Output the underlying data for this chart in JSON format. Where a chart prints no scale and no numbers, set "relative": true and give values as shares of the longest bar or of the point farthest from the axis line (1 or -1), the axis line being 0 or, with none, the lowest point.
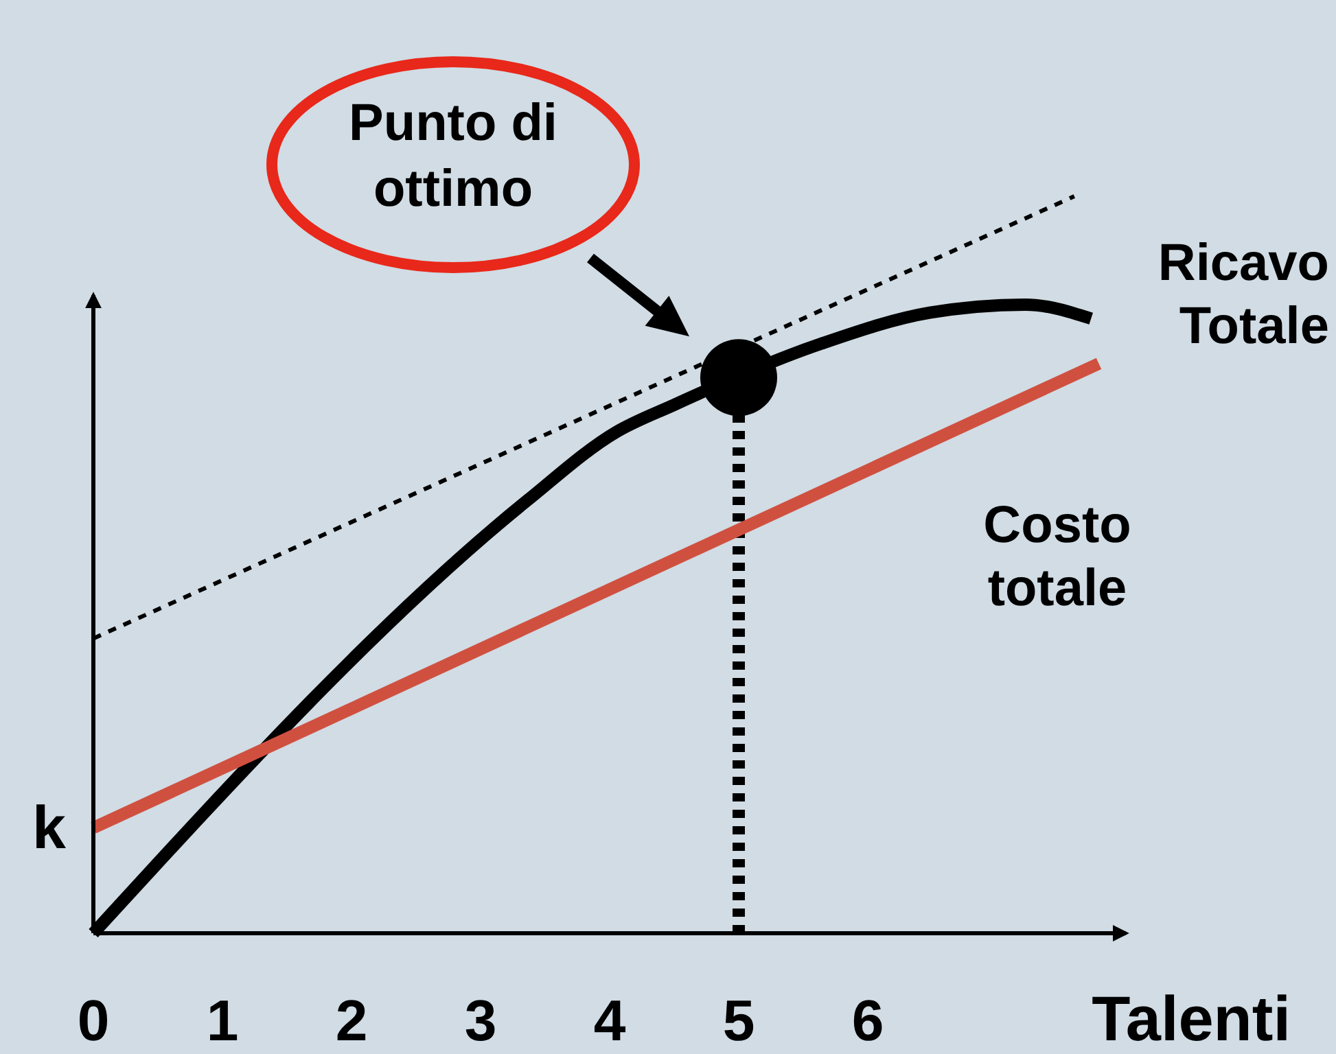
{
  "chart_data": {
    "type": "line",
    "relative": true,
    "xlabel": "Talenti",
    "xlim": [
      0,
      8
    ],
    "xticks": [
      0,
      1,
      2,
      3,
      4,
      5,
      6
    ],
    "series": [
      {
        "name": "Ricavo Totale",
        "color": "#000000",
        "x": [
          0,
          3.36,
          4.05,
          4.5,
          5.64,
          6.48,
          7.22,
          7.73
        ],
        "values": [
          0,
          0.587,
          0.68,
          0.717,
          0.8,
          0.842,
          0.853,
          0.834
        ],
        "line_style": "solid"
      },
      {
        "name": "Costo totale",
        "color": "#d05040",
        "x": [
          0,
          7.79
        ],
        "values": [
          0.143,
          0.773
        ],
        "line_style": "solid"
      },
      {
        "color": "#000000",
        "x": [
          0,
          7.6
        ],
        "values": [
          0.4,
          1
        ],
        "line_style": "dotted"
      },
      {
        "type": "scatter",
        "color": "#000000",
        "marker": "circle",
        "x": [
          5
        ],
        "values": [
          0.754
        ]
      }
    ],
    "ref_lines": [
      {
        "axis": "x",
        "value": 5,
        "color": "#000000",
        "line_style": "dotted"
      }
    ],
    "annotations": [
      "Punto di ottimo",
      {
        "text": "k",
        "x": 0,
        "y": 0.143
      }
    ]
  }
}
